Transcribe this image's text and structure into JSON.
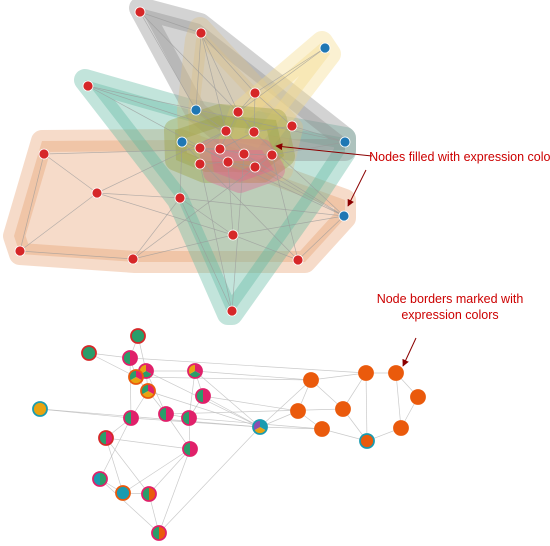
{
  "annotations": {
    "nodes_filled": "Nodes filled with expression colors",
    "node_borders": "Node borders marked with expression colors"
  },
  "colors": {
    "red_node": "#d62728",
    "blue_node": "#1f77b4",
    "edge": "#bdbdbd",
    "annotation": "#cc0000",
    "hull_gray": "#8c8c8c",
    "hull_tan": "#d9c08a",
    "hull_yellow": "#f5d98a",
    "hull_teal": "#5fb8a0",
    "hull_salmon": "#e8a070",
    "hull_olive": "#9aa040",
    "hull_pink": "#e06090",
    "orange_node": "#ea5a0c",
    "magenta_node": "#e0206a",
    "green_node": "#2a9d6a",
    "teal_node": "#1a9bb0",
    "gold_node": "#e8a310",
    "purple_node": "#8a4fb0"
  }
}
